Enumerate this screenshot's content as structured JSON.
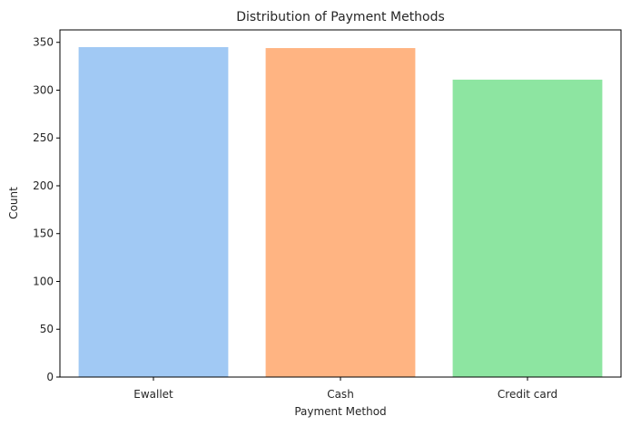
{
  "chart_data": {
    "type": "bar",
    "title": "Distribution of Payment Methods",
    "xlabel": "Payment Method",
    "ylabel": "Count",
    "categories": [
      "Ewallet",
      "Cash",
      "Credit card"
    ],
    "values": [
      345,
      344,
      311
    ],
    "colors": [
      "#a1c9f4",
      "#ffb482",
      "#8de5a1"
    ],
    "ylim": [
      0,
      363
    ],
    "yticks": [
      0,
      50,
      100,
      150,
      200,
      250,
      300,
      350
    ],
    "grid": false,
    "legend": "none"
  }
}
